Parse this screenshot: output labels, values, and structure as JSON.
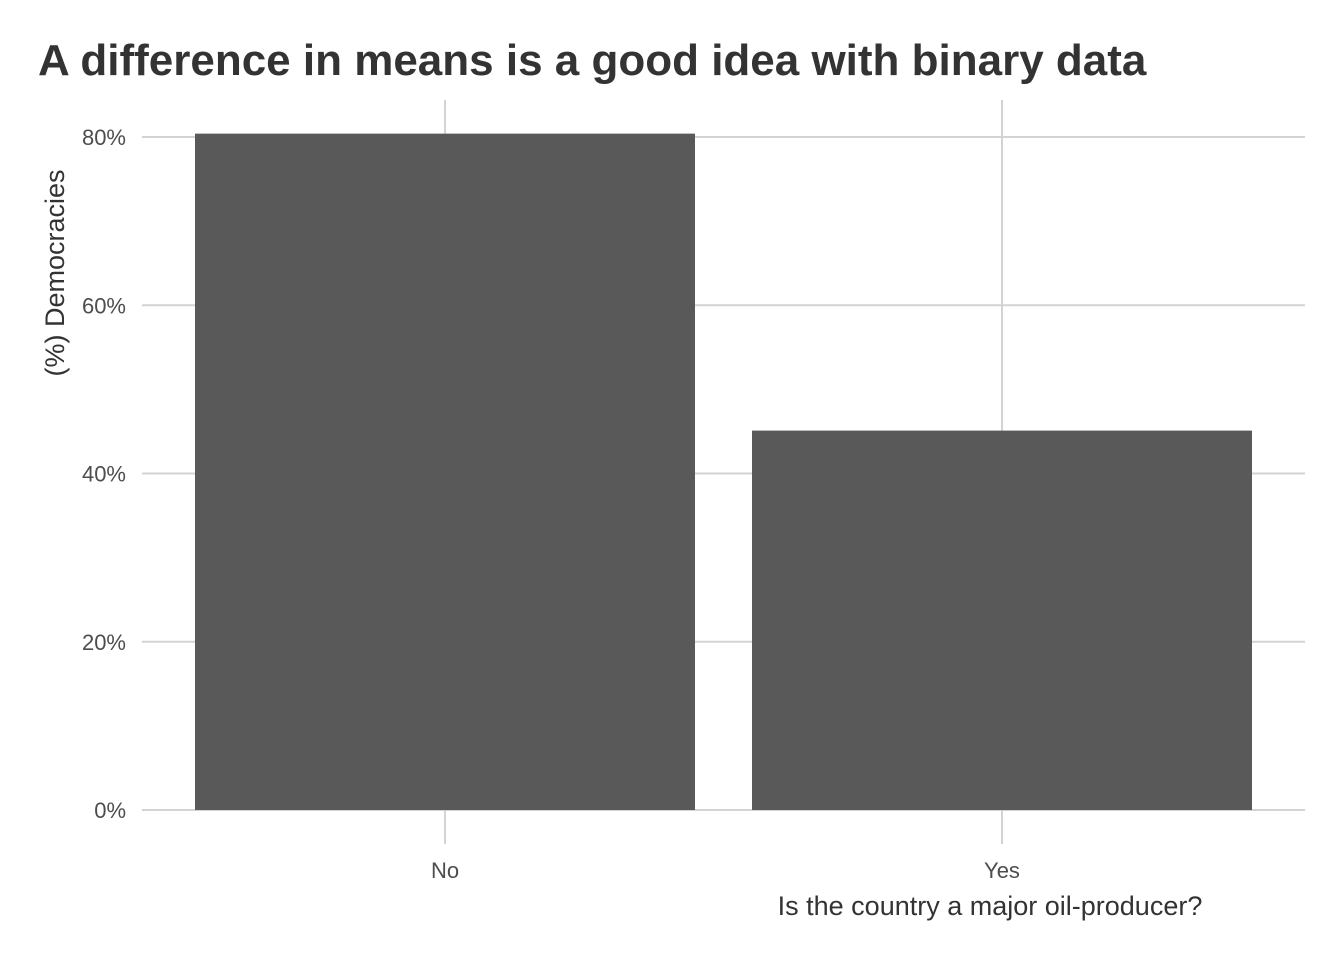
{
  "chart_data": {
    "type": "bar",
    "title": "A difference in means is a good idea with binary data",
    "xlabel": "Is the country a major oil-producer?",
    "ylabel": "(%) Democracies",
    "categories": [
      "No",
      "Yes"
    ],
    "values": [
      0.804,
      0.451
    ],
    "ylim": [
      0,
      0.8
    ],
    "yticks": [
      {
        "value": 0,
        "label": "0%"
      },
      {
        "value": 0.2,
        "label": "20%"
      },
      {
        "value": 0.4,
        "label": "40%"
      },
      {
        "value": 0.6,
        "label": "60%"
      },
      {
        "value": 0.8,
        "label": "80%"
      }
    ],
    "grid": true,
    "legend": "none",
    "bar_color": "#595959",
    "grid_color": "#d3d3d3"
  }
}
